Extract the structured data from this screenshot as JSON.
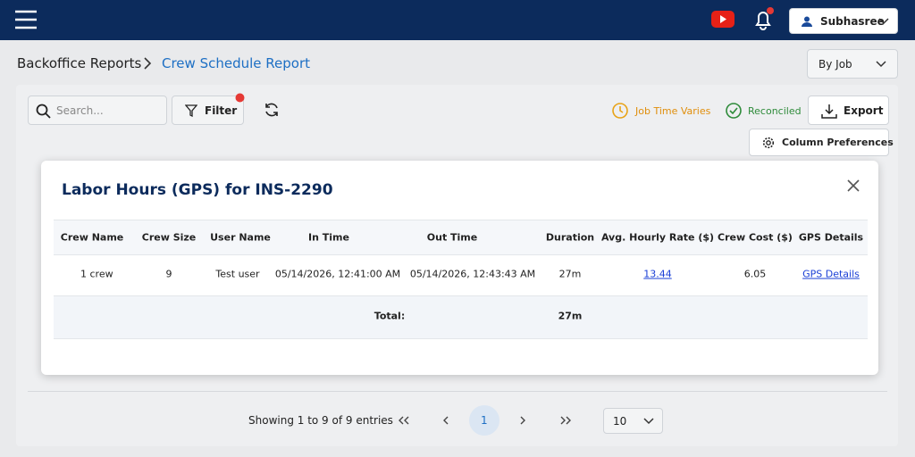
{
  "header": {
    "user": "Subhasree"
  },
  "breadcrumb": {
    "parent": "Backoffice Reports",
    "current": "Crew Schedule Report"
  },
  "view_select": "By Job",
  "toolbar": {
    "search_placeholder": "Search...",
    "filter": "Filter",
    "legend": [
      "Job Time Varies",
      "Reconciled"
    ],
    "export": "Export",
    "column_preferences": "Column Preferences"
  },
  "modal": {
    "title": "Labor Hours (GPS) for INS-2290",
    "columns": [
      "Crew Name",
      "Crew Size",
      "User Name",
      "In Time",
      "Out Time",
      "Duration",
      "Avg. Hourly Rate ($)",
      "Crew Cost ($)",
      "GPS Details"
    ],
    "rows": [
      [
        "1 crew",
        "9",
        "Test user",
        "05/14/2026, 12:41:00 AM",
        "05/14/2026, 12:43:43 AM",
        "27m",
        "13.44",
        "6.05",
        "GPS Details"
      ]
    ],
    "total": {
      "label": "Total:",
      "duration": "27m"
    }
  },
  "pagination": {
    "summary": "Showing 1 to 9 of 9 entries",
    "current_page": "1",
    "page_size": "10"
  }
}
